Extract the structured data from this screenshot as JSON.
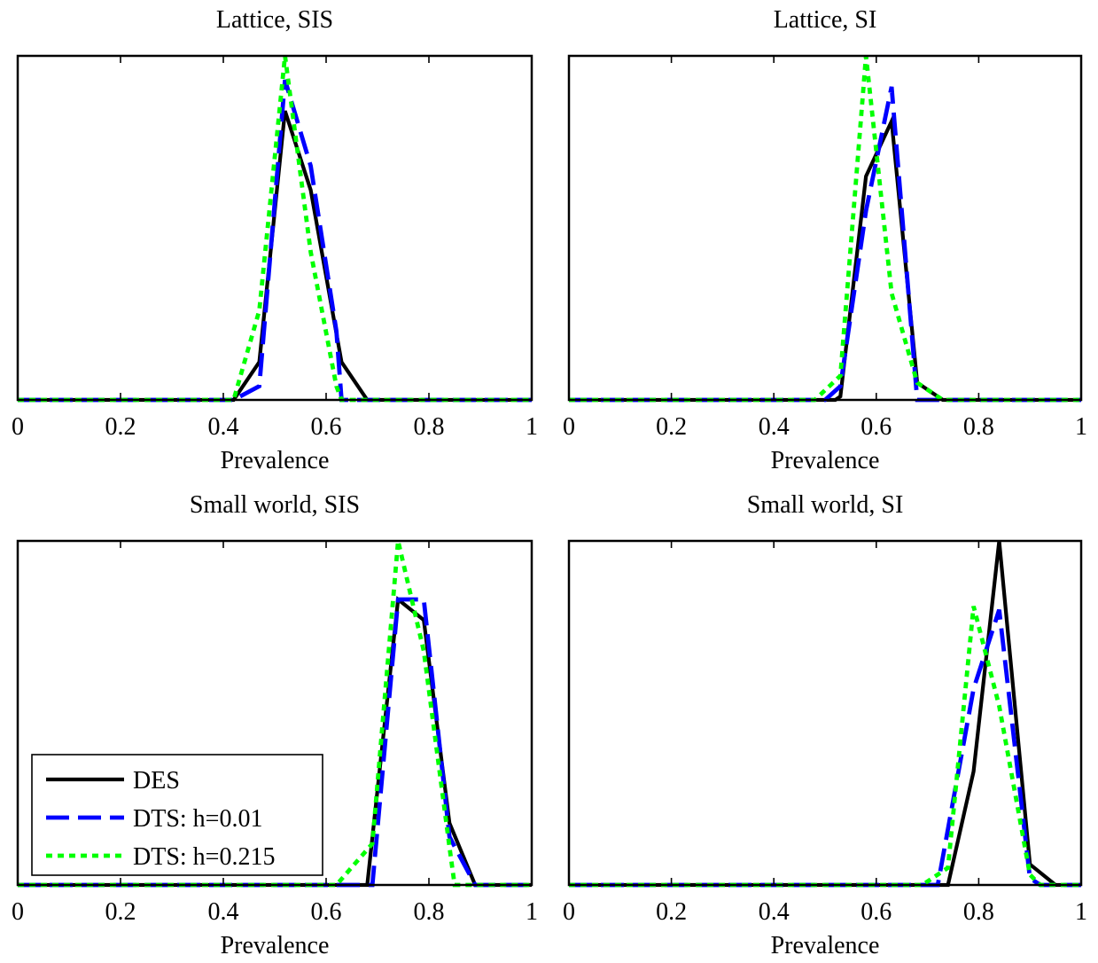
{
  "colors": {
    "DES": "#000000",
    "DTS_001": "#0000ff",
    "DTS_0215": "#00ff00"
  },
  "chart_data": [
    {
      "type": "line",
      "title": "Lattice, SIS",
      "xlabel": "Prevalence",
      "xlim": [
        0,
        1
      ],
      "xticks": [
        "0",
        "0.2",
        "0.4",
        "0.6",
        "0.8",
        "1"
      ],
      "ylim": [
        0,
        1
      ],
      "grid": false,
      "series": [
        {
          "name": "DES",
          "x": [
            0,
            0.42,
            0.47,
            0.52,
            0.57,
            0.63,
            0.68,
            1
          ],
          "y": [
            0,
            0,
            0.11,
            0.84,
            0.61,
            0.11,
            0,
            0
          ]
        },
        {
          "name": "DTS: h=0.01",
          "x": [
            0,
            0.42,
            0.47,
            0.52,
            0.57,
            0.62,
            0.63,
            1
          ],
          "y": [
            0,
            0,
            0.04,
            0.93,
            0.68,
            0.2,
            0,
            0
          ]
        },
        {
          "name": "DTS: h=0.215",
          "x": [
            0,
            0.42,
            0.47,
            0.52,
            0.57,
            0.62,
            0.63,
            1
          ],
          "y": [
            0,
            0,
            0.26,
            1.0,
            0.43,
            0.04,
            0,
            0
          ]
        }
      ]
    },
    {
      "type": "line",
      "title": "Lattice, SI",
      "xlabel": "Prevalence",
      "xlim": [
        0,
        1
      ],
      "xticks": [
        "0",
        "0.2",
        "0.4",
        "0.6",
        "0.8",
        "1"
      ],
      "ylim": [
        0,
        1
      ],
      "grid": false,
      "series": [
        {
          "name": "DES",
          "x": [
            0,
            0.52,
            0.53,
            0.58,
            0.63,
            0.68,
            0.73,
            1
          ],
          "y": [
            0,
            0,
            0.01,
            0.65,
            0.81,
            0.05,
            0,
            0
          ]
        },
        {
          "name": "DTS: h=0.01",
          "x": [
            0,
            0.5,
            0.53,
            0.58,
            0.63,
            0.68,
            0.69,
            1
          ],
          "y": [
            0,
            0,
            0.04,
            0.55,
            0.91,
            0.0,
            0,
            0
          ]
        },
        {
          "name": "DTS: h=0.215",
          "x": [
            0,
            0.48,
            0.53,
            0.58,
            0.63,
            0.68,
            0.73,
            1
          ],
          "y": [
            0,
            0,
            0.07,
            1.0,
            0.31,
            0.05,
            0,
            0
          ]
        }
      ]
    },
    {
      "type": "line",
      "title": "Small world, SIS",
      "xlabel": "Prevalence",
      "xlim": [
        0,
        1
      ],
      "xticks": [
        "0",
        "0.2",
        "0.4",
        "0.6",
        "0.8",
        "1"
      ],
      "ylim": [
        0,
        1
      ],
      "grid": false,
      "series": [
        {
          "name": "DES",
          "x": [
            0,
            0.68,
            0.74,
            0.79,
            0.84,
            0.89,
            1
          ],
          "y": [
            0,
            0,
            0.83,
            0.77,
            0.18,
            0,
            0
          ]
        },
        {
          "name": "DTS: h=0.01",
          "x": [
            0,
            0.69,
            0.74,
            0.79,
            0.84,
            0.89,
            1
          ],
          "y": [
            0,
            0,
            0.83,
            0.83,
            0.14,
            0,
            0
          ]
        },
        {
          "name": "DTS: h=0.215",
          "x": [
            0,
            0.62,
            0.69,
            0.74,
            0.79,
            0.84,
            0.85,
            1
          ],
          "y": [
            0,
            0,
            0.12,
            1.0,
            0.68,
            0.11,
            0,
            0
          ]
        }
      ]
    },
    {
      "type": "line",
      "title": "Small world, SI",
      "xlabel": "Prevalence",
      "xlim": [
        0,
        1
      ],
      "xticks": [
        "0",
        "0.2",
        "0.4",
        "0.6",
        "0.8",
        "1"
      ],
      "ylim": [
        0,
        1
      ],
      "grid": false,
      "series": [
        {
          "name": "DES",
          "x": [
            0,
            0.74,
            0.79,
            0.84,
            0.9,
            0.95,
            1
          ],
          "y": [
            0,
            0,
            0.33,
            1.0,
            0.06,
            0,
            0
          ]
        },
        {
          "name": "DTS: h=0.01",
          "x": [
            0,
            0.72,
            0.79,
            0.84,
            0.9,
            0.92,
            1
          ],
          "y": [
            0,
            0,
            0.57,
            0.8,
            0.02,
            0,
            0
          ]
        },
        {
          "name": "DTS: h=0.215",
          "x": [
            0,
            0.69,
            0.74,
            0.79,
            0.84,
            0.9,
            0.92,
            1
          ],
          "y": [
            0,
            0,
            0.05,
            0.81,
            0.52,
            0.03,
            0,
            0
          ]
        }
      ]
    }
  ],
  "legend": {
    "placement": "lower-left",
    "panel": 2,
    "entries": [
      {
        "label": "DES",
        "series": "DES"
      },
      {
        "label": "DTS: h=0.01",
        "series": "DTS_001"
      },
      {
        "label": "DTS: h=0.215",
        "series": "DTS_0215"
      }
    ]
  }
}
